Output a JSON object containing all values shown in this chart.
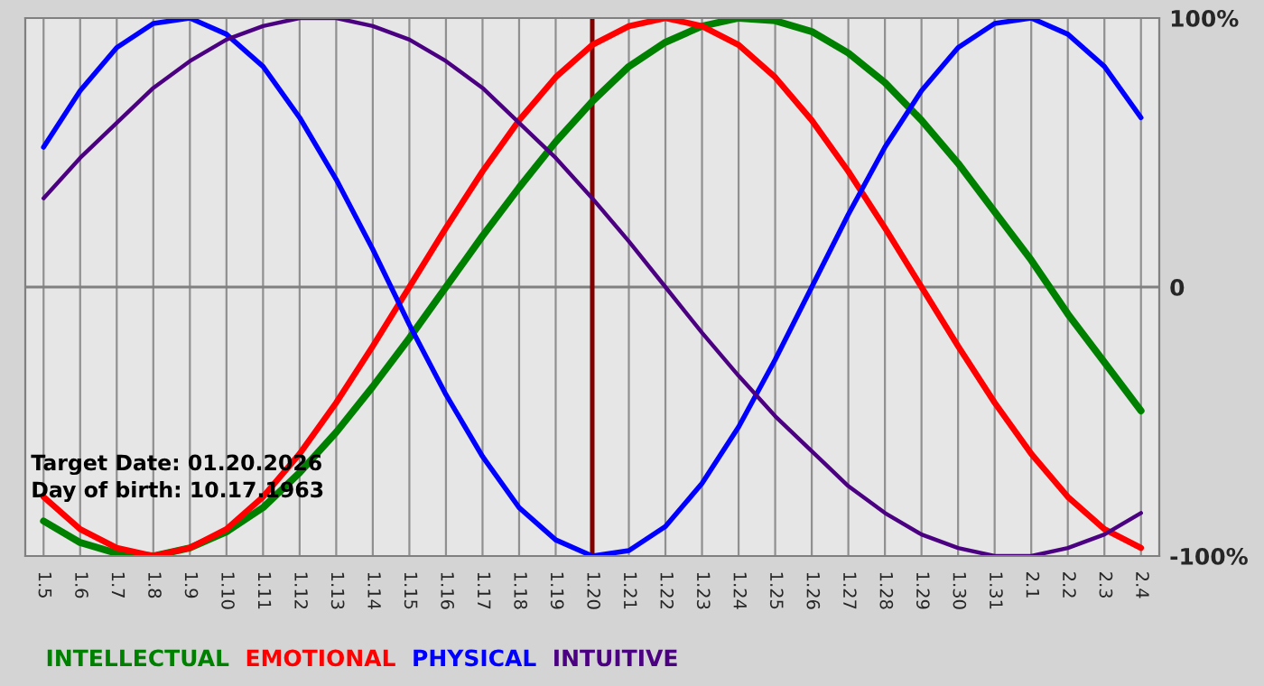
{
  "chart_data": {
    "type": "line",
    "categories": [
      "1.5",
      "1.6",
      "1.7",
      "1.8",
      "1.9",
      "1.10",
      "1.11",
      "1.12",
      "1.13",
      "1.14",
      "1.15",
      "1.16",
      "1.17",
      "1.18",
      "1.19",
      "1.20",
      "1.21",
      "1.22",
      "1.23",
      "1.24",
      "1.25",
      "1.26",
      "1.27",
      "1.28",
      "1.29",
      "1.30",
      "1.31",
      "2.1",
      "2.2",
      "2.3",
      "2.4"
    ],
    "series": [
      {
        "name": "INTELLECTUAL",
        "color": "#008000",
        "values": [
          -87,
          -95,
          -99,
          -100,
          -97,
          -91,
          -82,
          -69,
          -54,
          -37,
          -19,
          0,
          19,
          37,
          54,
          69,
          82,
          91,
          97,
          100,
          99,
          95,
          87,
          76,
          62,
          46,
          28,
          10,
          -10,
          -28,
          -46
        ]
      },
      {
        "name": "EMOTIONAL",
        "color": "#ff0000",
        "values": [
          -78,
          -90,
          -97,
          -100,
          -97,
          -90,
          -78,
          -62,
          -43,
          -22,
          0,
          22,
          43,
          62,
          78,
          90,
          97,
          100,
          97,
          90,
          78,
          62,
          43,
          22,
          0,
          -22,
          -43,
          -62,
          -78,
          -90,
          -97
        ]
      },
      {
        "name": "PHYSICAL",
        "color": "#0000ff",
        "values": [
          52,
          73,
          89,
          98,
          100,
          94,
          82,
          63,
          40,
          14,
          -14,
          -40,
          -63,
          -82,
          -94,
          -100,
          -98,
          -89,
          -73,
          -52,
          -27,
          0,
          27,
          52,
          73,
          89,
          98,
          100,
          94,
          82,
          63
        ]
      },
      {
        "name": "INTUITIVE",
        "color": "#4b0082",
        "values": [
          33,
          48,
          61,
          74,
          84,
          92,
          97,
          100,
          100,
          97,
          92,
          84,
          74,
          61,
          48,
          33,
          17,
          0,
          -17,
          -33,
          -48,
          -61,
          -74,
          -84,
          -92,
          -97,
          -100,
          -100,
          -97,
          -92,
          -84
        ]
      }
    ],
    "ylim": [
      -100,
      100
    ],
    "yticks": [
      {
        "value": 100,
        "label": "100%"
      },
      0,
      {
        "value": -100,
        "label": "-100%"
      }
    ],
    "grid": "x",
    "legend": "bottom",
    "ref_lines": [
      {
        "axis": "y",
        "value": 0,
        "color": "#808080"
      },
      {
        "axis": "x",
        "value": "1.20",
        "color": "#800000"
      }
    ],
    "annotations": [
      "Target Date: 01.20.2026",
      "Day of birth: 10.17.1963"
    ]
  }
}
